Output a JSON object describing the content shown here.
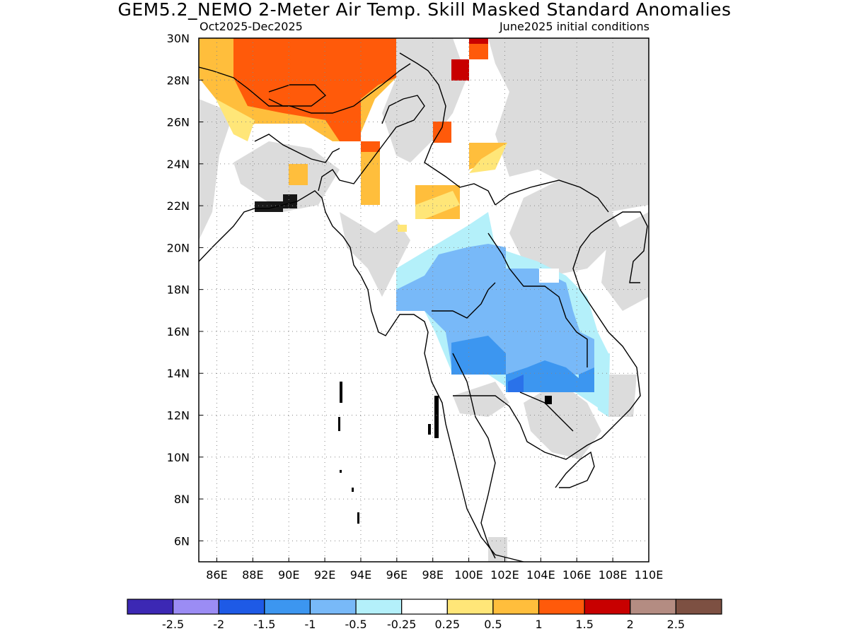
{
  "header": {
    "title": "GEM5.2_NEMO 2-Meter Air Temp. Skill Masked Standard Anomalies",
    "period": "Oct2025-Dec2025",
    "init": "June2025 initial conditions"
  },
  "map": {
    "lon_min": 85,
    "lon_max": 110,
    "lat_min": 5,
    "lat_max": 30,
    "x_ticks": [
      "86E",
      "88E",
      "90E",
      "92E",
      "94E",
      "96E",
      "98E",
      "100E",
      "102E",
      "104E",
      "106E",
      "108E",
      "110E"
    ],
    "y_ticks": [
      "6N",
      "8N",
      "10N",
      "12N",
      "14N",
      "16N",
      "18N",
      "20N",
      "22N",
      "24N",
      "26N",
      "28N",
      "30N"
    ],
    "grid": true,
    "mask_color": "#dcdcdc",
    "coast_color": "#000000"
  },
  "legend": {
    "colors": [
      "#3c28b4",
      "#9b8cf4",
      "#1e5ae6",
      "#3c96f0",
      "#78b9f8",
      "#b4f0fa",
      "#ffffff",
      "#ffe678",
      "#ffbe3c",
      "#ff5a0a",
      "#c80000",
      "#b48c82",
      "#7d5042"
    ],
    "labels": [
      "-2.5",
      "-2",
      "-1.5",
      "-1",
      "-0.5",
      "-0.25",
      "0.25",
      "0.5",
      "1",
      "1.5",
      "2",
      "2.5"
    ]
  }
}
